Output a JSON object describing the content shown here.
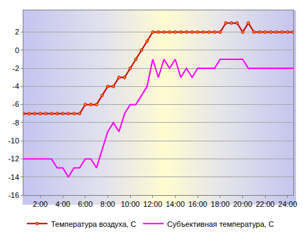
{
  "chart_data": {
    "type": "line",
    "x": [
      0.5,
      1,
      1.5,
      2,
      2.5,
      3,
      3.5,
      4,
      4.5,
      5,
      5.5,
      6,
      6.5,
      7,
      7.5,
      8,
      8.5,
      9,
      9.5,
      10,
      10.5,
      11,
      11.5,
      12,
      12.5,
      13,
      13.5,
      14,
      14.5,
      15,
      15.5,
      16,
      16.5,
      17,
      17.5,
      18,
      18.5,
      19,
      19.5,
      20,
      20.5,
      21,
      21.5,
      22,
      22.5,
      23,
      23.5,
      24,
      24.5
    ],
    "series": [
      {
        "name": "Температура воздуха, С",
        "color": "#cc0000",
        "marker": "circle",
        "values": [
          -7,
          -7,
          -7,
          -7,
          -7,
          -7,
          -7,
          -7,
          -7,
          -7,
          -7,
          -6,
          -6,
          -6,
          -5,
          -4,
          -4,
          -3,
          -3,
          -2,
          -1,
          0,
          1,
          2,
          2,
          2,
          2,
          2,
          2,
          2,
          2,
          2,
          2,
          2,
          2,
          2,
          3,
          3,
          3,
          2,
          3,
          2,
          2,
          2,
          2,
          2,
          2,
          2,
          2
        ]
      },
      {
        "name": "Субъективная температура, С",
        "color": "#ff00ff",
        "values": [
          -12,
          -12,
          -12,
          -12,
          -12,
          -12,
          -13,
          -13,
          -14,
          -13,
          -13,
          -12,
          -12,
          -13,
          -11,
          -9,
          -8,
          -9,
          -7,
          -6,
          -6,
          -5,
          -4,
          -1,
          -3,
          -1,
          -2,
          -1,
          -3,
          -2,
          -3,
          -2,
          -2,
          -2,
          -2,
          -1,
          -1,
          -1,
          -1,
          -1,
          -2,
          -2,
          -2,
          -2,
          -2,
          -2,
          -2,
          -2,
          -2
        ]
      }
    ],
    "xlim": [
      0.5,
      24.5
    ],
    "xticks": [
      {
        "value": 2,
        "label": "2:00"
      },
      {
        "value": 4,
        "label": "4:00"
      },
      {
        "value": 6,
        "label": "6:00"
      },
      {
        "value": 8,
        "label": "8:00"
      },
      {
        "value": 10,
        "label": "10:00"
      },
      {
        "value": 12,
        "label": "12:00"
      },
      {
        "value": 14,
        "label": "14:00"
      },
      {
        "value": 16,
        "label": "16:00"
      },
      {
        "value": 18,
        "label": "18:00"
      },
      {
        "value": 20,
        "label": "20:00"
      },
      {
        "value": 22,
        "label": "22:00"
      },
      {
        "value": 24,
        "label": "24:00"
      }
    ],
    "ylim": [
      -16,
      4.4
    ],
    "yticks": [
      -16,
      -14,
      -12,
      -10,
      -8,
      -6,
      -4,
      -2,
      0,
      2
    ],
    "grid": true,
    "legend": "bottom"
  }
}
